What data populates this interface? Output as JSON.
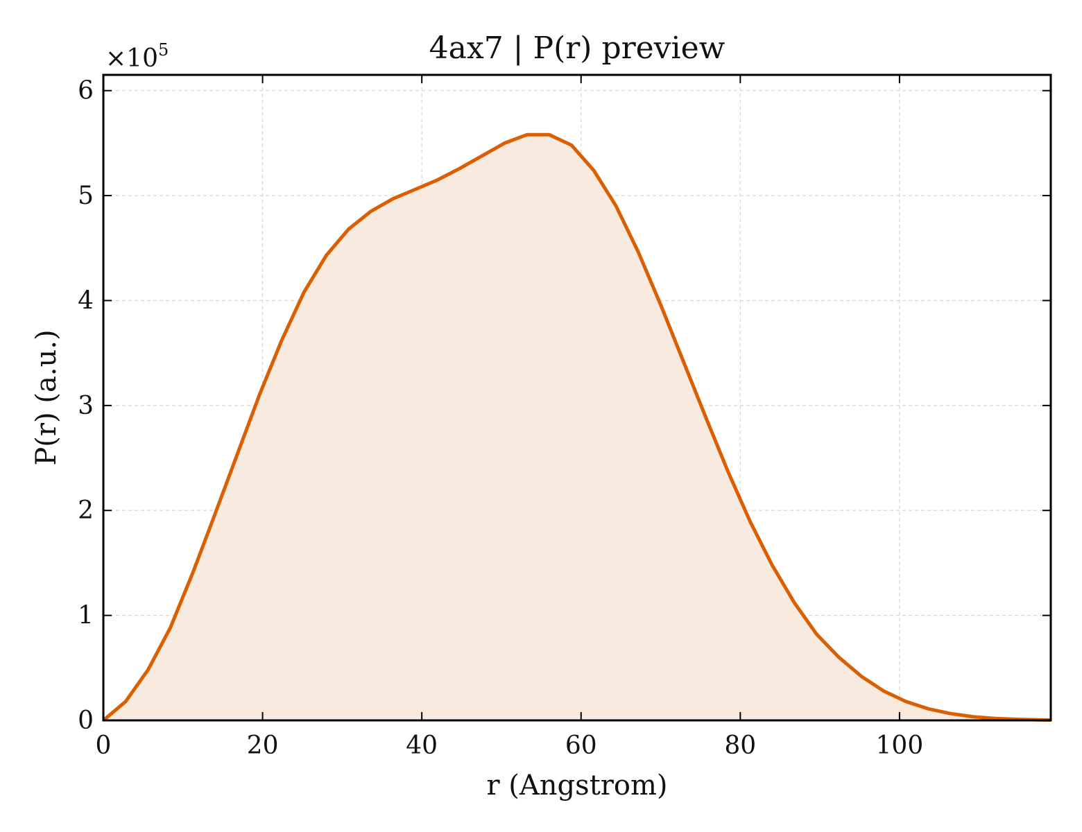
{
  "chart_data": {
    "type": "area",
    "title": "4ax7 | P(r) preview",
    "xlabel": "r (Angstrom)",
    "ylabel": "P(r) (a.u.)",
    "y_offset_label": "×10",
    "y_offset_exponent": "5",
    "xlim": [
      0,
      119
    ],
    "ylim": [
      0,
      6.15
    ],
    "x_ticks": [
      0,
      20,
      40,
      60,
      80,
      100
    ],
    "y_ticks": [
      0,
      1,
      2,
      3,
      4,
      5,
      6
    ],
    "grid": true,
    "line_color": "#d95f02",
    "fill_color": "#f8eadf",
    "series": [
      {
        "x": [
          0,
          2.8,
          5.6,
          8.4,
          11.2,
          14.0,
          16.8,
          19.6,
          22.4,
          25.2,
          28.0,
          30.8,
          33.6,
          36.4,
          39.2,
          42.0,
          44.8,
          47.6,
          50.4,
          53.2,
          56.0,
          58.8,
          61.6,
          64.4,
          67.2,
          70.0,
          72.8,
          75.6,
          78.4,
          81.2,
          84.0,
          86.8,
          89.6,
          92.4,
          95.2,
          98.0,
          100.8,
          103.6,
          106.4,
          109.2,
          112.0,
          114.8,
          117.6,
          119
        ],
        "y": [
          0,
          0.18,
          0.48,
          0.88,
          1.4,
          1.96,
          2.53,
          3.1,
          3.62,
          4.08,
          4.43,
          4.68,
          4.85,
          4.97,
          5.06,
          5.15,
          5.26,
          5.38,
          5.5,
          5.58,
          5.58,
          5.48,
          5.24,
          4.9,
          4.46,
          3.96,
          3.43,
          2.9,
          2.38,
          1.9,
          1.48,
          1.12,
          0.82,
          0.6,
          0.42,
          0.28,
          0.18,
          0.11,
          0.065,
          0.035,
          0.018,
          0.01,
          0.005,
          0.003
        ]
      }
    ]
  }
}
